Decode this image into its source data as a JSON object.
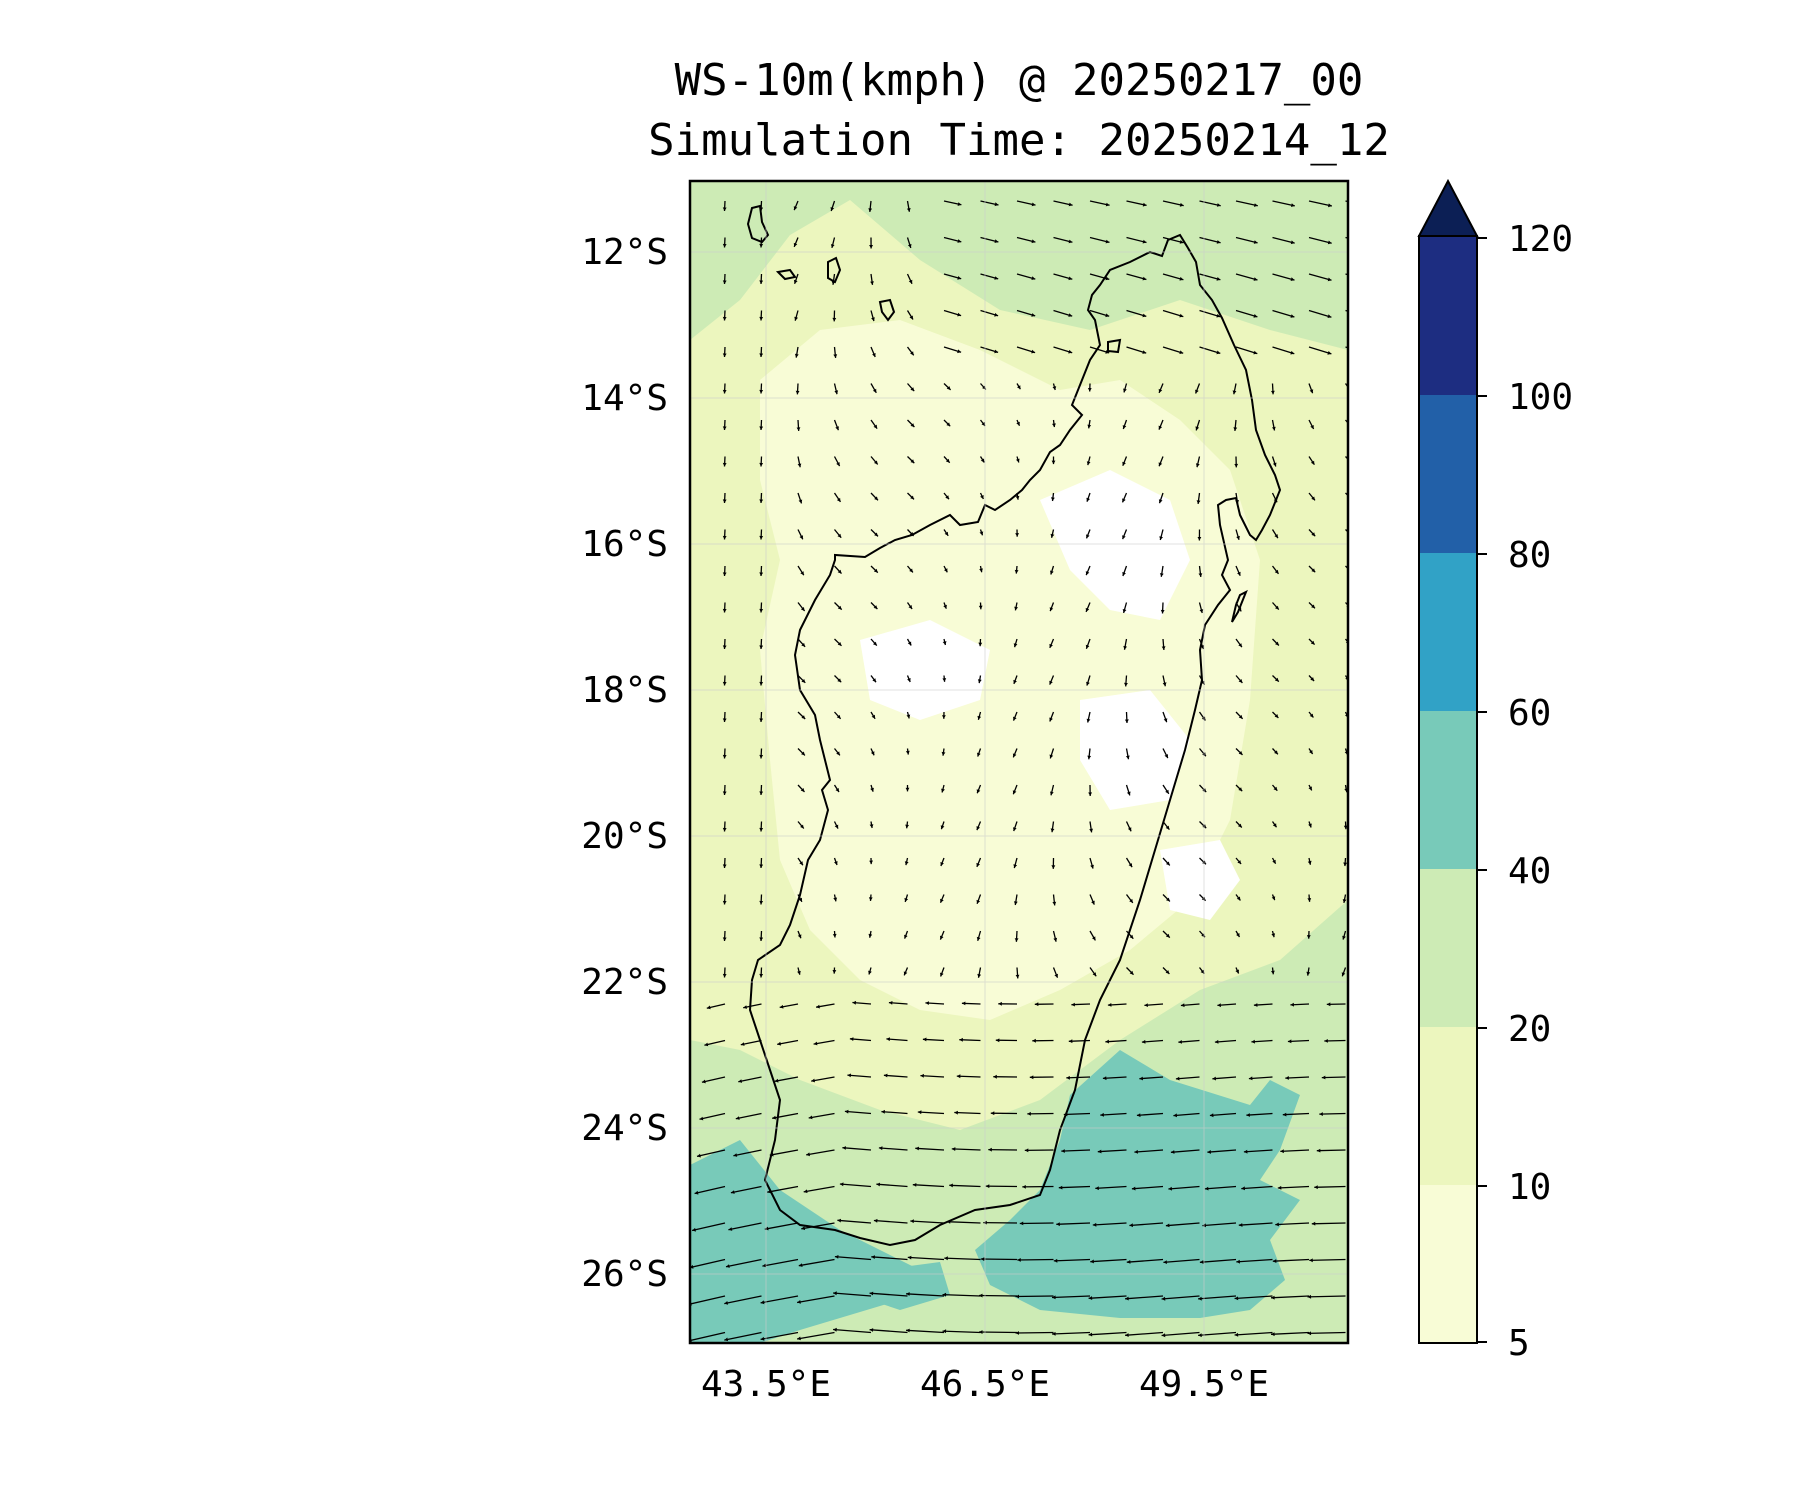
{
  "title": {
    "line1": "WS-10m(kmph) @ 20250217_00",
    "line2": "Simulation Time: 20250214_12"
  },
  "map": {
    "lat_ticks": [
      "12°S",
      "14°S",
      "16°S",
      "18°S",
      "20°S",
      "22°S",
      "24°S",
      "26°S"
    ],
    "lon_ticks": [
      "43.5°E",
      "46.5°E",
      "49.5°E"
    ]
  },
  "colorbar": {
    "labels": [
      "120",
      "100",
      "80",
      "60",
      "40",
      "20",
      "10",
      "5"
    ],
    "colors": [
      "#f8fcd6",
      "#ecf6be",
      "#cdebb5",
      "#78cab9",
      "#31a2c6",
      "#2260a8",
      "#1d2d81"
    ],
    "extend_color": "#0c1f55",
    "extend": "max"
  },
  "colors": {
    "land_light": "#ecf6be",
    "ocean_mid": "#cdebb5",
    "strong_wind": "#78cab9",
    "calm": "#ffffff"
  }
}
